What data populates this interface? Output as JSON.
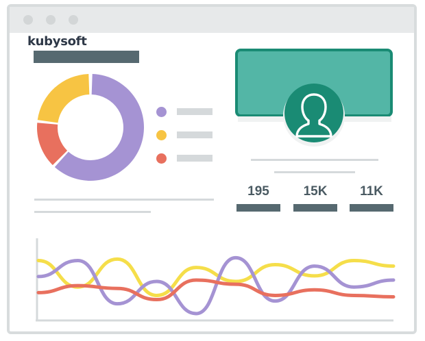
{
  "brand": {
    "name": "kubysoft"
  },
  "colors": {
    "purple": "#a593d3",
    "yellow": "#f7c443",
    "red": "#e8705e",
    "teal": "#53b6a6",
    "teal_border": "#1a8b74",
    "teal_dark": "#1a8b74",
    "line_yellow": "#f5de4a"
  },
  "donut_chart": {
    "legend": [
      {
        "color_key": "purple",
        "icon": "purple-dot-icon"
      },
      {
        "color_key": "yellow",
        "icon": "yellow-dot-icon"
      },
      {
        "color_key": "red",
        "icon": "red-dot-icon"
      }
    ]
  },
  "profile": {
    "icon": "user-avatar-icon"
  },
  "stats": [
    {
      "value": "195"
    },
    {
      "value": "15K"
    },
    {
      "value": "11K"
    }
  ],
  "chart_data": {
    "type": "line",
    "title": "",
    "xlabel": "",
    "ylabel": "",
    "grid": false,
    "series": [
      {
        "color": "#f5de4a",
        "values": [
          0.78,
          0.4,
          0.8,
          0.28,
          0.68,
          0.48,
          0.72,
          0.56,
          0.78,
          0.7
        ]
      },
      {
        "color": "#a593d3",
        "values": [
          0.55,
          0.78,
          0.16,
          0.48,
          0.02,
          0.82,
          0.2,
          0.7,
          0.4,
          0.5
        ]
      },
      {
        "color": "#e8705e",
        "values": [
          0.32,
          0.42,
          0.38,
          0.22,
          0.5,
          0.44,
          0.28,
          0.36,
          0.28,
          0.26
        ]
      }
    ]
  }
}
